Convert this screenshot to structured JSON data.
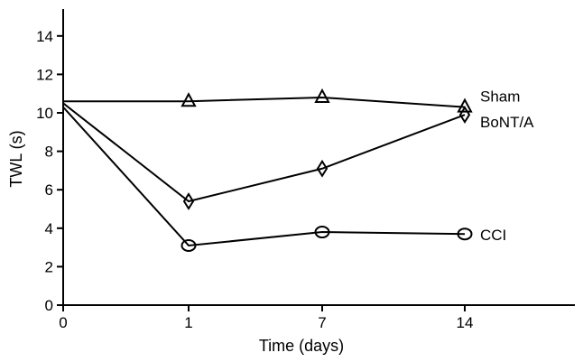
{
  "chart_data": {
    "type": "line",
    "title": "",
    "xlabel": "Time (days)",
    "ylabel": "TWL (s)",
    "categories": [
      "0",
      "1",
      "7",
      "14"
    ],
    "ylim": [
      0,
      16
    ],
    "yticks": [
      0,
      2,
      4,
      6,
      8,
      10,
      12,
      14
    ],
    "grid": false,
    "legend": "inline labels at right end of each line",
    "series": [
      {
        "name": "Sham",
        "marker": "triangle",
        "values": [
          10.6,
          10.6,
          10.8,
          10.3
        ]
      },
      {
        "name": "BoNT/A",
        "marker": "diamond",
        "values": [
          10.5,
          5.4,
          7.1,
          9.9
        ]
      },
      {
        "name": "CCI",
        "marker": "circle",
        "values": [
          10.3,
          3.1,
          3.8,
          3.7
        ]
      }
    ]
  }
}
